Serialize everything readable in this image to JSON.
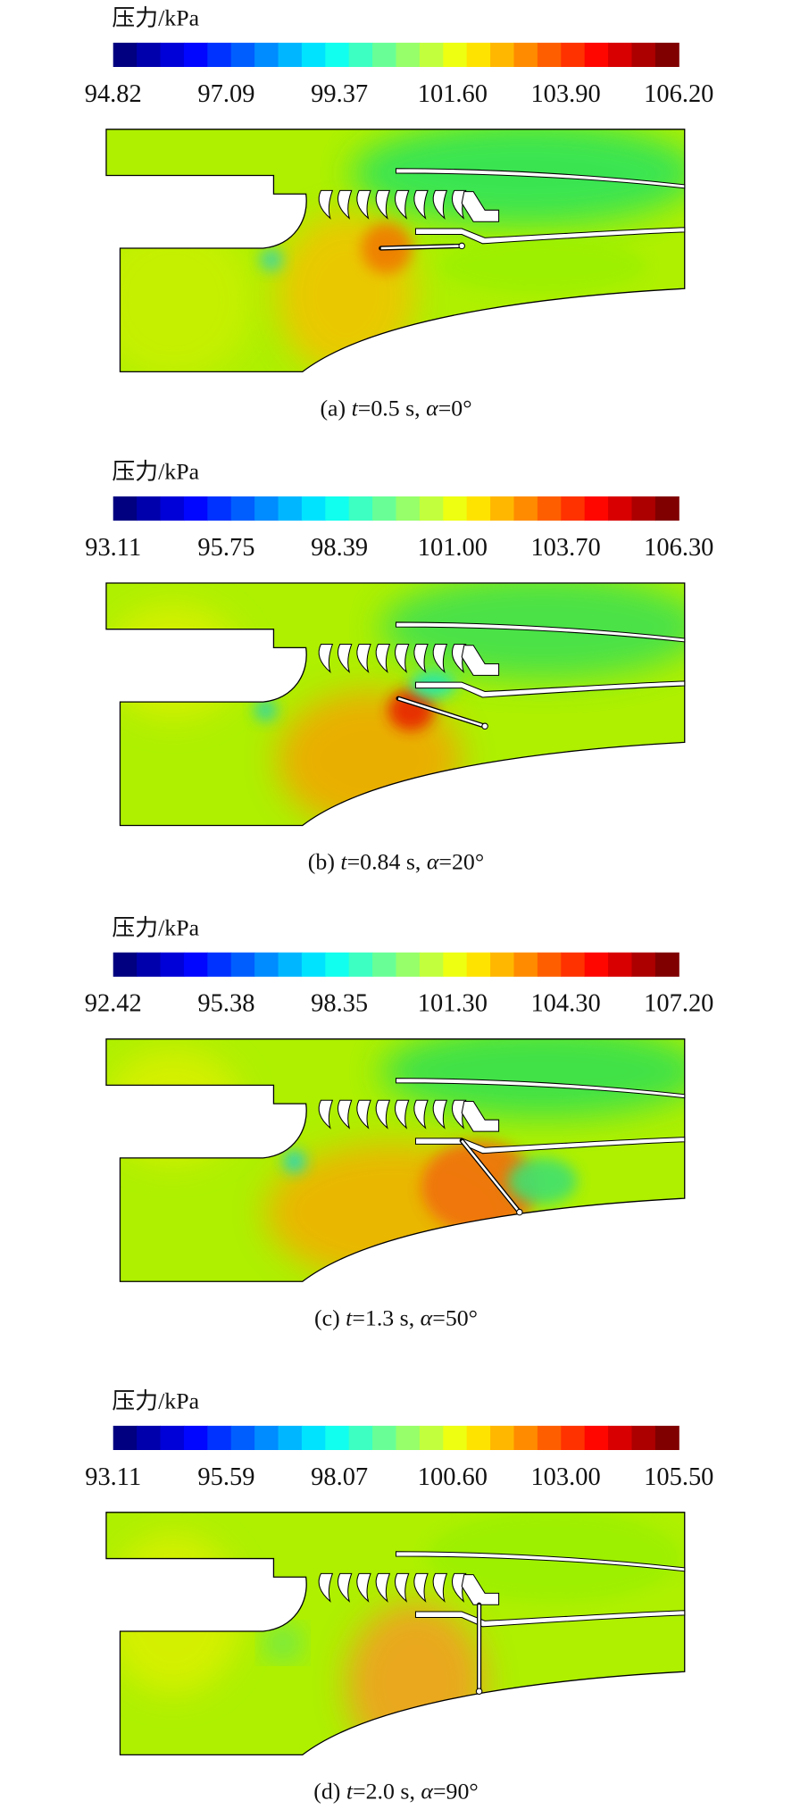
{
  "panels": [
    {
      "legend_title": "压力/kPa",
      "ticks": [
        "94.82",
        "97.09",
        "99.37",
        "101.60",
        "103.90",
        "106.20"
      ],
      "caption": [
        "(a) ",
        "t",
        "=0.5 s, ",
        "α",
        "=0°"
      ]
    },
    {
      "legend_title": "压力/kPa",
      "ticks": [
        "93.11",
        "95.75",
        "98.39",
        "101.00",
        "103.70",
        "106.30"
      ],
      "caption": [
        "(b) ",
        "t",
        "=0.84 s, ",
        "α",
        "=20°"
      ]
    },
    {
      "legend_title": "压力/kPa",
      "ticks": [
        "92.42",
        "95.38",
        "98.35",
        "101.30",
        "104.30",
        "107.20"
      ],
      "caption": [
        "(c) ",
        "t",
        "=1.3 s, ",
        "α",
        "=50°"
      ]
    },
    {
      "legend_title": "压力/kPa",
      "ticks": [
        "93.11",
        "95.59",
        "98.07",
        "100.60",
        "103.00",
        "105.50"
      ],
      "caption": [
        "(d) ",
        "t",
        "=2.0 s, ",
        "α",
        "=90°"
      ]
    }
  ]
}
